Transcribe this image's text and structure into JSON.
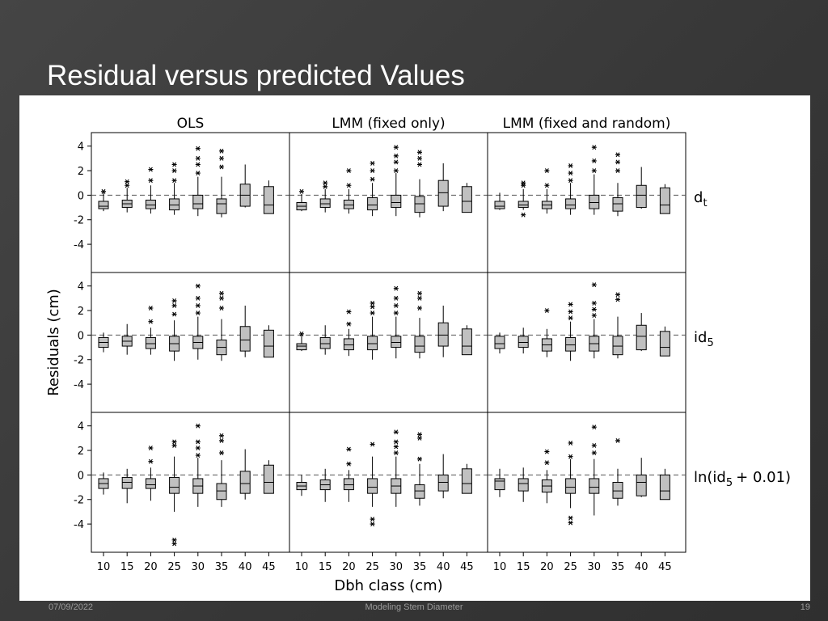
{
  "slide": {
    "title": "Residual versus predicted Values",
    "date": "07/09/2022",
    "footer": "Modeling Stem Diameter",
    "page": "19"
  },
  "chart_data": {
    "type": "boxplot",
    "columns": [
      "OLS",
      "LMM (fixed only)",
      "LMM (fixed and random)"
    ],
    "categories": [
      "10",
      "15",
      "20",
      "25",
      "30",
      "35",
      "40",
      "45"
    ],
    "xlabel": "Dbh class (cm)",
    "ylabel": "Residuals (cm)",
    "ylim": [
      -6.3,
      5.1
    ],
    "yticks": [
      -4,
      -2,
      0,
      2,
      4
    ],
    "box_color": "#c0c0c0",
    "reference_line": 0,
    "rows": [
      {
        "label": [
          "d",
          "t"
        ],
        "panels": [
          {
            "boxes": [
              {
                "low": -1.3,
                "q1": -1.1,
                "median": -0.9,
                "q3": -0.5,
                "high": 0.2,
                "outliers": [
                  0.3
                ]
              },
              {
                "low": -1.4,
                "q1": -1.0,
                "median": -0.7,
                "q3": -0.4,
                "high": 0.6,
                "outliers": [
                  0.8,
                  1.1
                ]
              },
              {
                "low": -1.5,
                "q1": -1.1,
                "median": -0.8,
                "q3": -0.4,
                "high": 0.8,
                "outliers": [
                  1.2,
                  2.1
                ]
              },
              {
                "low": -1.6,
                "q1": -1.2,
                "median": -0.8,
                "q3": -0.3,
                "high": 1.0,
                "outliers": [
                  1.2,
                  2.0,
                  2.5
                ]
              },
              {
                "low": -1.7,
                "q1": -1.1,
                "median": -0.7,
                "q3": 0,
                "high": 1.5,
                "outliers": [
                  1.8,
                  2.5,
                  3.0,
                  3.8
                ]
              },
              {
                "low": -1.8,
                "q1": -1.5,
                "median": -0.7,
                "q3": -0.3,
                "high": 1.5,
                "outliers": [
                  2.3,
                  3.0,
                  3.6
                ]
              },
              {
                "low": -1.0,
                "q1": -0.9,
                "median": 0,
                "q3": 0.9,
                "high": 2.5,
                "outliers": []
              },
              {
                "low": -1.5,
                "q1": -1.5,
                "median": -0.8,
                "q3": 0.7,
                "high": 1.2,
                "outliers": []
              }
            ]
          },
          {
            "boxes": [
              {
                "low": -1.3,
                "q1": -1.2,
                "median": -0.9,
                "q3": -0.6,
                "high": 0.1,
                "outliers": [
                  0.3
                ]
              },
              {
                "low": -1.4,
                "q1": -1.0,
                "median": -0.7,
                "q3": -0.3,
                "high": 0.5,
                "outliers": [
                  0.7,
                  1.0
                ]
              },
              {
                "low": -1.5,
                "q1": -1.1,
                "median": -0.8,
                "q3": -0.4,
                "high": 0.5,
                "outliers": [
                  0.8,
                  2.0
                ]
              },
              {
                "low": -1.7,
                "q1": -1.2,
                "median": -0.8,
                "q3": -0.2,
                "high": 1.0,
                "outliers": [
                  1.3,
                  2.0,
                  2.6
                ]
              },
              {
                "low": -1.7,
                "q1": -1.0,
                "median": -0.6,
                "q3": 0,
                "high": 1.8,
                "outliers": [
                  2.0,
                  2.7,
                  3.2,
                  3.9
                ]
              },
              {
                "low": -1.8,
                "q1": -1.4,
                "median": -0.7,
                "q3": -0.1,
                "high": 1.3,
                "outliers": [
                  2.5,
                  3.0,
                  3.5
                ]
              },
              {
                "low": -1.3,
                "q1": -0.9,
                "median": 0.2,
                "q3": 1.2,
                "high": 2.6,
                "outliers": []
              },
              {
                "low": -1.4,
                "q1": -1.4,
                "median": -0.5,
                "q3": 0.7,
                "high": 1.0,
                "outliers": []
              }
            ]
          },
          {
            "boxes": [
              {
                "low": -1.2,
                "q1": -1.1,
                "median": -0.9,
                "q3": -0.5,
                "high": 0.2,
                "outliers": []
              },
              {
                "low": -1.2,
                "q1": -1.0,
                "median": -0.8,
                "q3": -0.5,
                "high": 0.5,
                "outliers": [
                  -1.6,
                  0.8,
                  1.0
                ]
              },
              {
                "low": -1.5,
                "q1": -1.1,
                "median": -0.8,
                "q3": -0.5,
                "high": 0.5,
                "outliers": [
                  0.8,
                  2.0
                ]
              },
              {
                "low": -1.6,
                "q1": -1.1,
                "median": -0.8,
                "q3": -0.3,
                "high": 1.0,
                "outliers": [
                  1.2,
                  1.8,
                  2.4
                ]
              },
              {
                "low": -1.6,
                "q1": -1.1,
                "median": -0.6,
                "q3": 0,
                "high": 1.7,
                "outliers": [
                  2.0,
                  2.8,
                  3.9
                ]
              },
              {
                "low": -1.7,
                "q1": -1.3,
                "median": -0.7,
                "q3": -0.2,
                "high": 1.0,
                "outliers": [
                  2.0,
                  2.7,
                  3.3
                ]
              },
              {
                "low": -1.1,
                "q1": -1.0,
                "median": 0,
                "q3": 0.8,
                "high": 2.3,
                "outliers": []
              },
              {
                "low": -1.5,
                "q1": -1.5,
                "median": -0.8,
                "q3": 0.6,
                "high": 0.9,
                "outliers": []
              }
            ]
          }
        ]
      },
      {
        "label": [
          "id",
          "5"
        ],
        "panels": [
          {
            "boxes": [
              {
                "low": -1.4,
                "q1": -1.0,
                "median": -0.6,
                "q3": -0.2,
                "high": 0.2,
                "outliers": []
              },
              {
                "low": -1.6,
                "q1": -0.9,
                "median": -0.5,
                "q3": -0.1,
                "high": 0.9,
                "outliers": []
              },
              {
                "low": -1.6,
                "q1": -1.1,
                "median": -0.7,
                "q3": -0.2,
                "high": 0.6,
                "outliers": [
                  1.1,
                  2.2
                ]
              },
              {
                "low": -2.1,
                "q1": -1.3,
                "median": -0.7,
                "q3": -0.1,
                "high": 1.2,
                "outliers": [
                  1.7,
                  2.4,
                  2.8
                ]
              },
              {
                "low": -2.0,
                "q1": -1.1,
                "median": -0.6,
                "q3": -0.1,
                "high": 1.5,
                "outliers": [
                  1.8,
                  2.4,
                  3.0,
                  4.0
                ]
              },
              {
                "low": -2.1,
                "q1": -1.6,
                "median": -1.0,
                "q3": -0.4,
                "high": 1.3,
                "outliers": [
                  2.2,
                  3.0,
                  3.4
                ]
              },
              {
                "low": -1.8,
                "q1": -1.3,
                "median": -0.4,
                "q3": 0.7,
                "high": 2.4,
                "outliers": []
              },
              {
                "low": -1.8,
                "q1": -1.8,
                "median": -0.9,
                "q3": 0.4,
                "high": 0.8,
                "outliers": []
              }
            ]
          },
          {
            "boxes": [
              {
                "low": -1.3,
                "q1": -1.2,
                "median": -0.9,
                "q3": -0.7,
                "high": 0.1,
                "outliers": [
                  0.1
                ]
              },
              {
                "low": -1.6,
                "q1": -1.1,
                "median": -0.7,
                "q3": -0.2,
                "high": 0.8,
                "outliers": []
              },
              {
                "low": -1.7,
                "q1": -1.2,
                "median": -0.8,
                "q3": -0.3,
                "high": 0.5,
                "outliers": [
                  0.9,
                  1.9
                ]
              },
              {
                "low": -2.0,
                "q1": -1.2,
                "median": -0.7,
                "q3": -0.1,
                "high": 1.5,
                "outliers": [
                  1.8,
                  2.3,
                  2.6
                ]
              },
              {
                "low": -1.9,
                "q1": -1.0,
                "median": -0.6,
                "q3": -0.1,
                "high": 1.5,
                "outliers": [
                  1.8,
                  2.4,
                  3.0,
                  3.8
                ]
              },
              {
                "low": -1.9,
                "q1": -1.4,
                "median": -0.9,
                "q3": -0.1,
                "high": 1.4,
                "outliers": [
                  2.2,
                  3.0,
                  3.4
                ]
              },
              {
                "low": -1.8,
                "q1": -0.9,
                "median": 0,
                "q3": 1.0,
                "high": 2.4,
                "outliers": []
              },
              {
                "low": -1.6,
                "q1": -1.6,
                "median": -0.9,
                "q3": 0.5,
                "high": 0.8,
                "outliers": []
              }
            ]
          },
          {
            "boxes": [
              {
                "low": -1.5,
                "q1": -1.1,
                "median": -0.7,
                "q3": -0.1,
                "high": 0.2,
                "outliers": []
              },
              {
                "low": -1.5,
                "q1": -1.0,
                "median": -0.6,
                "q3": -0.1,
                "high": 0.6,
                "outliers": []
              },
              {
                "low": -1.8,
                "q1": -1.3,
                "median": -0.8,
                "q3": -0.3,
                "high": 0.5,
                "outliers": [
                  2.0
                ]
              },
              {
                "low": -2.1,
                "q1": -1.3,
                "median": -0.8,
                "q3": -0.2,
                "high": 1.1,
                "outliers": [
                  1.4,
                  1.9,
                  2.5
                ]
              },
              {
                "low": -1.9,
                "q1": -1.3,
                "median": -0.7,
                "q3": -0.1,
                "high": 1.3,
                "outliers": [
                  1.6,
                  2.1,
                  2.6,
                  4.1
                ]
              },
              {
                "low": -1.9,
                "q1": -1.6,
                "median": -0.9,
                "q3": -0.1,
                "high": 1.5,
                "outliers": [
                  2.9,
                  3.3
                ]
              },
              {
                "low": -1.3,
                "q1": -1.2,
                "median": -0.1,
                "q3": 0.8,
                "high": 1.8,
                "outliers": []
              },
              {
                "low": -1.7,
                "q1": -1.7,
                "median": -1.0,
                "q3": 0.3,
                "high": 0.7,
                "outliers": []
              }
            ]
          }
        ]
      },
      {
        "label": [
          "ln(id",
          "5",
          "+ 0.01)"
        ],
        "panels": [
          {
            "boxes": [
              {
                "low": -1.6,
                "q1": -1.1,
                "median": -0.7,
                "q3": -0.3,
                "high": 0.2,
                "outliers": []
              },
              {
                "low": -2.3,
                "q1": -1.1,
                "median": -0.6,
                "q3": -0.2,
                "high": 0.5,
                "outliers": []
              },
              {
                "low": -2.1,
                "q1": -1.1,
                "median": -0.8,
                "q3": -0.3,
                "high": 0.6,
                "outliers": [
                  1.1,
                  2.2
                ]
              },
              {
                "low": -3.0,
                "q1": -1.5,
                "median": -1.0,
                "q3": -0.2,
                "high": 1.5,
                "outliers": [
                  2.4,
                  2.7,
                  -5.3,
                  -5.6
                ]
              },
              {
                "low": -2.6,
                "q1": -1.5,
                "median": -0.9,
                "q3": -0.3,
                "high": 1.4,
                "outliers": [
                  1.6,
                  2.2,
                  2.7,
                  4.0
                ]
              },
              {
                "low": -2.6,
                "q1": -2.0,
                "median": -1.3,
                "q3": -0.7,
                "high": 1.2,
                "outliers": [
                  1.8,
                  2.8,
                  3.2
                ]
              },
              {
                "low": -2.0,
                "q1": -1.5,
                "median": -0.7,
                "q3": 0.3,
                "high": 2.1,
                "outliers": []
              },
              {
                "low": -1.5,
                "q1": -1.5,
                "median": -0.6,
                "q3": 0.8,
                "high": 1.2,
                "outliers": []
              }
            ]
          },
          {
            "boxes": [
              {
                "low": -1.7,
                "q1": -1.2,
                "median": -0.9,
                "q3": -0.6,
                "high": 0,
                "outliers": []
              },
              {
                "low": -2.2,
                "q1": -1.2,
                "median": -0.8,
                "q3": -0.4,
                "high": 0.5,
                "outliers": []
              },
              {
                "low": -2.2,
                "q1": -1.2,
                "median": -0.8,
                "q3": -0.3,
                "high": 0.4,
                "outliers": [
                  0.9,
                  2.1
                ]
              },
              {
                "low": -2.6,
                "q1": -1.5,
                "median": -1.0,
                "q3": -0.3,
                "high": 1.5,
                "outliers": [
                  2.5,
                  -3.6,
                  -4.0
                ]
              },
              {
                "low": -2.6,
                "q1": -1.5,
                "median": -0.9,
                "q3": -0.3,
                "high": 1.5,
                "outliers": [
                  1.8,
                  2.3,
                  2.7,
                  3.5
                ]
              },
              {
                "low": -2.5,
                "q1": -1.9,
                "median": -1.3,
                "q3": -0.8,
                "high": 0.9,
                "outliers": [
                  1.3,
                  3.0,
                  3.3
                ]
              },
              {
                "low": -1.9,
                "q1": -1.3,
                "median": -0.6,
                "q3": 0,
                "high": 1.7,
                "outliers": []
              },
              {
                "low": -1.5,
                "q1": -1.5,
                "median": -0.7,
                "q3": 0.5,
                "high": 0.9,
                "outliers": []
              }
            ]
          },
          {
            "boxes": [
              {
                "low": -1.8,
                "q1": -1.2,
                "median": -0.5,
                "q3": -0.3,
                "high": 0.5,
                "outliers": []
              },
              {
                "low": -2.2,
                "q1": -1.3,
                "median": -0.7,
                "q3": -0.3,
                "high": 0.6,
                "outliers": []
              },
              {
                "low": -2.3,
                "q1": -1.4,
                "median": -0.9,
                "q3": -0.4,
                "high": 0.4,
                "outliers": [
                  1.0,
                  1.9
                ]
              },
              {
                "low": -2.7,
                "q1": -1.5,
                "median": -1.0,
                "q3": -0.3,
                "high": 1.3,
                "outliers": [
                  1.5,
                  2.6,
                  -3.5,
                  -3.9
                ]
              },
              {
                "low": -3.3,
                "q1": -1.5,
                "median": -1.0,
                "q3": -0.3,
                "high": 1.3,
                "outliers": [
                  1.8,
                  2.4,
                  3.9
                ]
              },
              {
                "low": -2.5,
                "q1": -1.9,
                "median": -1.3,
                "q3": -0.6,
                "high": 0.5,
                "outliers": [
                  2.8
                ]
              },
              {
                "low": -1.8,
                "q1": -1.7,
                "median": -0.6,
                "q3": 0,
                "high": 1.4,
                "outliers": []
              },
              {
                "low": -2.0,
                "q1": -2.0,
                "median": -1.3,
                "q3": 0,
                "high": 0.5,
                "outliers": []
              }
            ]
          }
        ]
      }
    ]
  }
}
